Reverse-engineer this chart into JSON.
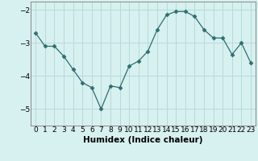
{
  "x": [
    0,
    1,
    2,
    3,
    4,
    5,
    6,
    7,
    8,
    9,
    10,
    11,
    12,
    13,
    14,
    15,
    16,
    17,
    18,
    19,
    20,
    21,
    22,
    23
  ],
  "y": [
    -2.7,
    -3.1,
    -3.1,
    -3.4,
    -3.8,
    -4.2,
    -4.35,
    -5.0,
    -4.3,
    -4.35,
    -3.7,
    -3.55,
    -3.25,
    -2.6,
    -2.15,
    -2.05,
    -2.05,
    -2.2,
    -2.6,
    -2.85,
    -2.85,
    -3.35,
    -3.0,
    -3.6
  ],
  "line_color": "#2e6e6e",
  "marker": "D",
  "marker_size": 2.5,
  "bg_color": "#d7f0f0",
  "grid_color": "#b8dada",
  "xlabel": "Humidex (Indice chaleur)",
  "ylim": [
    -5.5,
    -1.75
  ],
  "xlim": [
    -0.5,
    23.5
  ],
  "yticks": [
    -5,
    -4,
    -3,
    -2
  ],
  "xtick_labels": [
    "0",
    "1",
    "2",
    "3",
    "4",
    "5",
    "6",
    "7",
    "8",
    "9",
    "10",
    "11",
    "12",
    "13",
    "14",
    "15",
    "16",
    "17",
    "18",
    "19",
    "20",
    "21",
    "22",
    "23"
  ],
  "tick_fontsize": 6.5,
  "label_fontsize": 7.5
}
